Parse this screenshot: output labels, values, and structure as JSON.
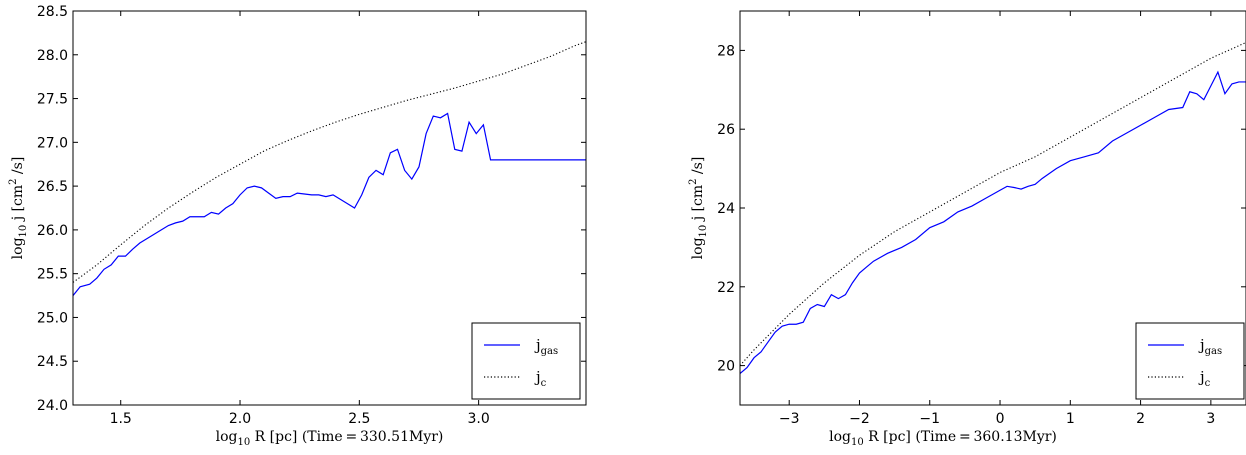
{
  "chart_data": [
    {
      "type": "line",
      "xlabel": "log",
      "xlabel_sub": "10",
      "xlabel_rest": " R [pc]   (Time = 330.51Myr)",
      "ylabel": "log",
      "ylabel_sub": "10",
      "ylabel_rest": " j [cm",
      "ylabel_sup": "2",
      "ylabel_end": " /s]",
      "xlim": [
        1.3,
        3.45
      ],
      "ylim": [
        24.0,
        28.5
      ],
      "xticks": [
        "1.5",
        "2.0",
        "2.5",
        "3.0"
      ],
      "xtick_values": [
        1.5,
        2.0,
        2.5,
        3.0
      ],
      "yticks": [
        "24.0",
        "24.5",
        "25.0",
        "25.5",
        "26.0",
        "26.5",
        "27.0",
        "27.5",
        "28.0",
        "28.5"
      ],
      "ytick_values": [
        24.0,
        24.5,
        25.0,
        25.5,
        26.0,
        26.5,
        27.0,
        27.5,
        28.0,
        28.5
      ],
      "legend_position": "lower-right",
      "series": [
        {
          "name": "j",
          "name_sub": "gas",
          "color": "#0000ff",
          "style": "solid",
          "x": [
            1.3,
            1.33,
            1.37,
            1.4,
            1.43,
            1.46,
            1.49,
            1.52,
            1.55,
            1.58,
            1.61,
            1.64,
            1.67,
            1.7,
            1.73,
            1.76,
            1.79,
            1.82,
            1.85,
            1.88,
            1.91,
            1.94,
            1.97,
            2.0,
            2.03,
            2.06,
            2.09,
            2.12,
            2.15,
            2.18,
            2.21,
            2.24,
            2.27,
            2.3,
            2.33,
            2.36,
            2.39,
            2.42,
            2.45,
            2.48,
            2.51,
            2.54,
            2.57,
            2.6,
            2.63,
            2.66,
            2.69,
            2.72,
            2.75,
            2.78,
            2.81,
            2.84,
            2.87,
            2.9,
            2.93,
            2.96,
            2.99,
            3.02,
            3.05,
            3.08,
            3.11,
            3.14,
            3.17,
            3.2,
            3.23,
            3.26,
            3.29,
            3.32,
            3.35,
            3.38,
            3.41,
            3.43,
            3.45
          ],
          "y": [
            25.25,
            25.35,
            25.38,
            25.45,
            25.55,
            25.6,
            25.7,
            25.7,
            25.78,
            25.85,
            25.9,
            25.95,
            26.0,
            26.05,
            26.08,
            26.1,
            26.15,
            26.15,
            26.15,
            26.2,
            26.18,
            26.25,
            26.3,
            26.4,
            26.48,
            26.5,
            26.48,
            26.42,
            26.36,
            26.38,
            26.38,
            26.42,
            26.41,
            26.4,
            26.4,
            26.38,
            26.4,
            26.35,
            26.3,
            26.25,
            26.4,
            26.6,
            26.68,
            26.63,
            26.88,
            26.92,
            26.68,
            26.58,
            26.72,
            27.1,
            27.3,
            27.28,
            27.33,
            26.92,
            26.9,
            27.23,
            27.1,
            27.2,
            26.8,
            26.8,
            26.8,
            26.8,
            26.8,
            26.8,
            26.8,
            26.8,
            26.8,
            26.8,
            26.8,
            26.8,
            26.8,
            26.8,
            26.8
          ]
        },
        {
          "name": "j",
          "name_sub": "c",
          "color": "#000000",
          "style": "dotted",
          "x": [
            1.3,
            1.4,
            1.5,
            1.6,
            1.7,
            1.8,
            1.9,
            2.0,
            2.1,
            2.2,
            2.3,
            2.4,
            2.5,
            2.6,
            2.7,
            2.8,
            2.9,
            3.0,
            3.1,
            3.2,
            3.3,
            3.4,
            3.45
          ],
          "y": [
            25.4,
            25.6,
            25.83,
            26.05,
            26.25,
            26.43,
            26.6,
            26.75,
            26.9,
            27.02,
            27.13,
            27.23,
            27.32,
            27.4,
            27.48,
            27.55,
            27.62,
            27.7,
            27.78,
            27.88,
            27.98,
            28.1,
            28.15
          ]
        }
      ]
    },
    {
      "type": "line",
      "xlabel": "log",
      "xlabel_sub": "10",
      "xlabel_rest": " R [pc]   (Time = 360.13Myr)",
      "ylabel": "log",
      "ylabel_sub": "10",
      "ylabel_rest": " j [cm",
      "ylabel_sup": "2",
      "ylabel_end": " /s]",
      "xlim": [
        -3.7,
        3.5
      ],
      "ylim": [
        19.0,
        29.0
      ],
      "xticks": [
        "−3",
        "−2",
        "−1",
        "0",
        "1",
        "2",
        "3"
      ],
      "xtick_values": [
        -3,
        -2,
        -1,
        0,
        1,
        2,
        3
      ],
      "yticks": [
        "20",
        "22",
        "24",
        "26",
        "28"
      ],
      "ytick_values": [
        20,
        22,
        24,
        26,
        28
      ],
      "legend_position": "lower-right",
      "series": [
        {
          "name": "j",
          "name_sub": "gas",
          "color": "#0000ff",
          "style": "solid",
          "x": [
            -3.7,
            -3.6,
            -3.5,
            -3.4,
            -3.3,
            -3.2,
            -3.1,
            -3.0,
            -2.9,
            -2.8,
            -2.7,
            -2.6,
            -2.5,
            -2.4,
            -2.3,
            -2.2,
            -2.1,
            -2.0,
            -1.9,
            -1.8,
            -1.6,
            -1.4,
            -1.2,
            -1.0,
            -0.8,
            -0.6,
            -0.4,
            -0.2,
            0.0,
            0.1,
            0.2,
            0.3,
            0.4,
            0.5,
            0.6,
            0.8,
            1.0,
            1.2,
            1.4,
            1.6,
            1.8,
            2.0,
            2.2,
            2.4,
            2.6,
            2.7,
            2.8,
            2.9,
            3.0,
            3.1,
            3.2,
            3.3,
            3.4,
            3.5
          ],
          "y": [
            19.8,
            19.95,
            20.2,
            20.35,
            20.6,
            20.85,
            21.0,
            21.05,
            21.05,
            21.1,
            21.45,
            21.55,
            21.5,
            21.8,
            21.7,
            21.8,
            22.1,
            22.35,
            22.5,
            22.65,
            22.85,
            23.0,
            23.2,
            23.5,
            23.65,
            23.9,
            24.05,
            24.25,
            24.45,
            24.55,
            24.52,
            24.48,
            24.55,
            24.6,
            24.75,
            25.0,
            25.2,
            25.3,
            25.4,
            25.7,
            25.9,
            26.1,
            26.3,
            26.5,
            26.55,
            26.95,
            26.9,
            26.75,
            27.1,
            27.45,
            26.9,
            27.15,
            27.2,
            27.2
          ]
        },
        {
          "name": "j",
          "name_sub": "c",
          "color": "#000000",
          "style": "dotted",
          "x": [
            -3.7,
            -3.5,
            -3.0,
            -2.5,
            -2.0,
            -1.5,
            -1.0,
            -0.5,
            0.0,
            0.5,
            1.0,
            1.5,
            2.0,
            2.5,
            3.0,
            3.5
          ],
          "y": [
            20.0,
            20.4,
            21.3,
            22.1,
            22.8,
            23.4,
            23.9,
            24.4,
            24.9,
            25.3,
            25.8,
            26.3,
            26.8,
            27.3,
            27.8,
            28.2
          ]
        }
      ]
    }
  ]
}
